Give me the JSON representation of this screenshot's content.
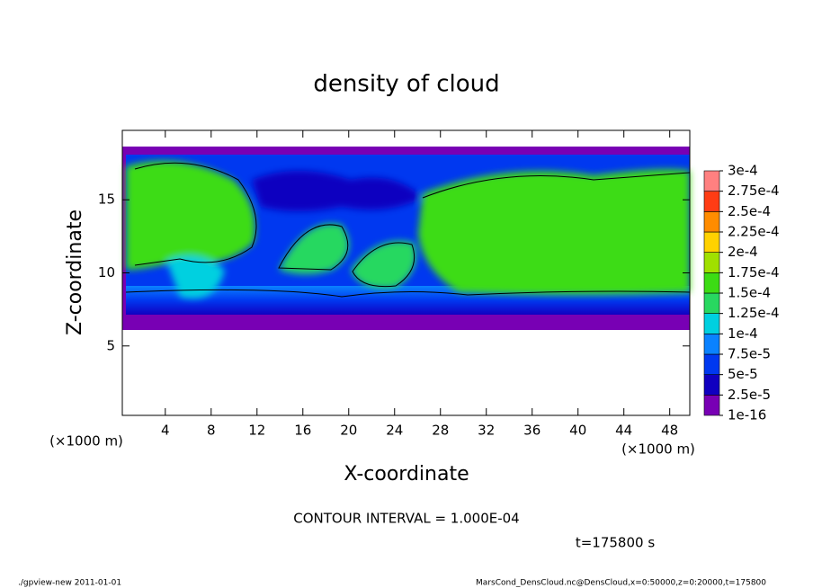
{
  "chart_data": {
    "type": "contour",
    "title": "density of cloud",
    "x_label": "X-coordinate",
    "x_unit": "(×1000 m)",
    "y_label": "Z-coordinate",
    "y_unit": "(×1000 m)",
    "xlim": [
      0.25,
      49.75
    ],
    "xticks": [
      4,
      8,
      12,
      16,
      20,
      24,
      28,
      32,
      36,
      40,
      44,
      48
    ],
    "ylim": [
      0.25,
      19.75
    ],
    "yticks": [
      5,
      10,
      15
    ],
    "colorbar": {
      "levels": [
        {
          "value": 1e-16,
          "label": "1e-16"
        },
        {
          "value": 2.5e-05,
          "label": "2.5e-5"
        },
        {
          "value": 5e-05,
          "label": "5e-5"
        },
        {
          "value": 7.5e-05,
          "label": "7.5e-5"
        },
        {
          "value": 0.0001,
          "label": "1e-4"
        },
        {
          "value": 0.000125,
          "label": "1.25e-4"
        },
        {
          "value": 0.00015,
          "label": "1.5e-4"
        },
        {
          "value": 0.000175,
          "label": "1.75e-4"
        },
        {
          "value": 0.0002,
          "label": "2e-4"
        },
        {
          "value": 0.000225,
          "label": "2.25e-4"
        },
        {
          "value": 0.00025,
          "label": "2.5e-4"
        },
        {
          "value": 0.000275,
          "label": "2.75e-4"
        },
        {
          "value": 0.0003,
          "label": "3e-4"
        }
      ],
      "colors": [
        "#7800b4",
        "#1000c0",
        "#0038f0",
        "#0a82ff",
        "#00d0e0",
        "#28d860",
        "#3cdc14",
        "#a0e000",
        "#ffd200",
        "#ff8c00",
        "#ff3c14",
        "#ff8080"
      ]
    },
    "contour_interval": "CONTOUR INTERVAL = 1.000E-04",
    "time_label": "t=175800 s",
    "footer_left": "./gpview-new  2011-01-01",
    "footer_right": "MarsCond_DensCloud.nc@DensCloud,x=0:50000,z=0:20000,t=175800"
  }
}
